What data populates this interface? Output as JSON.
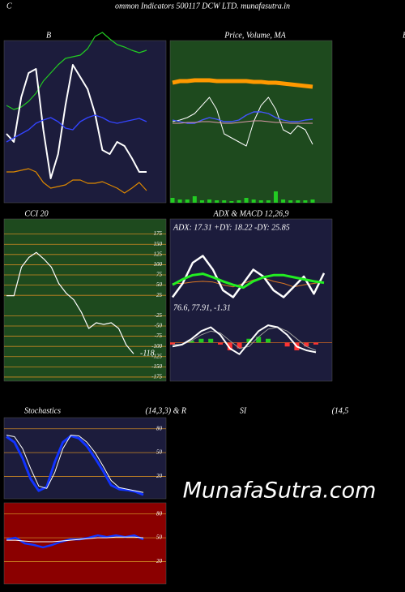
{
  "header": {
    "first": "C",
    "title": "ommon  Indicators 500117 DCW LTD. munafasutra.in",
    "clipped": "B"
  },
  "watermark": "MunafaSutra.com",
  "chart_data": [
    {
      "type": "line",
      "title": "B",
      "background": "#1c1c3c",
      "ylim": [
        0,
        100
      ],
      "series": [
        {
          "color": "#22cc22",
          "values": [
            60,
            57.5,
            59,
            62.5,
            67.5,
            75,
            80,
            85,
            89,
            90,
            91,
            95,
            102.5,
            105,
            101,
            97.5,
            96,
            94,
            92.5,
            94
          ]
        },
        {
          "color": "#ffffff",
          "values": [
            42.5,
            37.5,
            65,
            80,
            82.5,
            45,
            15,
            30,
            60,
            85,
            77.5,
            70,
            55,
            32.5,
            30,
            37.5,
            35,
            27.5,
            19,
            19
          ]
        },
        {
          "color": "#3344ff",
          "values": [
            37.5,
            40,
            42.5,
            45,
            49,
            51,
            52.5,
            50,
            46,
            45,
            50,
            52.5,
            54,
            52.5,
            50,
            49,
            50,
            51,
            52,
            50
          ]
        },
        {
          "color": "#dd8800",
          "values": [
            19,
            19,
            20,
            21,
            19,
            12.5,
            9,
            10,
            11,
            14,
            14,
            12,
            12,
            13,
            11,
            9,
            6,
            9,
            12.5,
            7.5
          ]
        }
      ]
    },
    {
      "type": "line",
      "title": "Price, Volume, MA",
      "background": "#1e4a1e",
      "ylim": [
        0,
        100
      ],
      "series": [
        {
          "color": "#ff9900",
          "values": [
            74,
            75,
            75,
            75.5,
            75.5,
            75.5,
            75,
            75,
            75,
            75,
            75,
            74.5,
            74.5,
            74,
            74,
            73.5,
            73,
            72.5,
            72,
            71.5
          ]
        },
        {
          "color": "#ffffff",
          "values": [
            50,
            51,
            52.5,
            55,
            60,
            65,
            57.5,
            42.5,
            40,
            37.5,
            35,
            50,
            60,
            65,
            57.5,
            45,
            42.5,
            47.5,
            45,
            36
          ]
        },
        {
          "color": "#4455ff",
          "values": [
            51,
            50,
            49,
            49,
            51,
            52.5,
            51.5,
            50,
            50,
            51,
            54,
            56,
            56,
            55,
            52.5,
            51,
            50,
            50,
            51,
            51.5
          ]
        },
        {
          "color": "#dd99aa",
          "values": [
            49,
            49,
            49.5,
            49.5,
            50,
            50,
            49.5,
            49,
            49,
            49.5,
            50,
            50.5,
            50.5,
            50,
            49.5,
            49.5,
            49,
            49,
            49,
            49
          ]
        }
      ],
      "volume": {
        "color": "#22cc22",
        "values": [
          3,
          2,
          2,
          4,
          1.5,
          2,
          1.5,
          1.5,
          1,
          1.5,
          3,
          2,
          1.5,
          1.5,
          7,
          2,
          1.5,
          1.5,
          1.5,
          2
        ]
      }
    },
    {
      "type": "line",
      "title": "CCI 20",
      "background": "#1e4a1e",
      "ylim": [
        -185,
        212
      ],
      "grid_color": "#cc8822",
      "yticks": [
        175,
        150,
        125,
        100,
        75,
        50,
        25,
        -25,
        -50,
        -75,
        -100,
        -125,
        -150,
        -175
      ],
      "series": [
        {
          "color": "#ffffff",
          "values": [
            24,
            24,
            94,
            118,
            130,
            114,
            94,
            54,
            30,
            14,
            -16,
            -56,
            -42,
            -46,
            -42,
            -56,
            -96,
            -118
          ]
        }
      ]
    },
    {
      "type": "line",
      "title": "ADX  & MACD 12,26,9",
      "background": "#1c1c3c",
      "ylim": [
        0,
        100
      ],
      "annotation": "ADX: 17.31  +DY: 18.22  -DY: 25.85",
      "series": [
        {
          "color": "#dd7722",
          "values": [
            30,
            30,
            32,
            33,
            32,
            28,
            25,
            30,
            35,
            38,
            33,
            30,
            25,
            28,
            30,
            32
          ]
        },
        {
          "color": "#ffffff",
          "values": [
            10,
            30,
            60,
            70,
            50,
            20,
            10,
            30,
            50,
            40,
            20,
            10,
            25,
            40,
            15,
            45
          ]
        },
        {
          "color": "#22ee22",
          "values": [
            28,
            36,
            42,
            44,
            39,
            33,
            28,
            24,
            33,
            39,
            42,
            42,
            39,
            36,
            33,
            31
          ]
        }
      ]
    },
    {
      "type": "line",
      "ylim": [
        -20,
        20
      ],
      "annotation": "76.6,  77.91,  -1.31",
      "histogram": {
        "colors": [
          "#22cc22",
          "#ff3333"
        ],
        "values": [
          -1,
          0,
          1,
          2,
          2,
          -1,
          -4,
          -3,
          2,
          3,
          2,
          0,
          -2,
          -4,
          -2,
          -1
        ]
      },
      "series": [
        {
          "color": "#999999",
          "values": [
            -1,
            -1,
            1,
            4,
            6,
            5,
            1,
            -3,
            -2,
            3,
            7,
            8,
            6,
            2,
            -2,
            -4
          ]
        },
        {
          "color": "#ffffff",
          "values": [
            -2,
            -1,
            2,
            6,
            8,
            4,
            -3,
            -6,
            0,
            6,
            9,
            8,
            4,
            -2,
            -4,
            -5
          ]
        }
      ]
    },
    {
      "type": "line",
      "title": "Stochastics",
      "subtitle": "(14,3,3) & R",
      "background": "#1c1c3c",
      "ylim": [
        -8,
        94
      ],
      "grid_color": "#cc8822",
      "yticks": [
        80,
        50,
        20
      ],
      "series": [
        {
          "color": "#1133ff",
          "values": [
            70,
            63,
            43,
            17,
            2,
            7,
            38,
            63,
            71,
            68,
            58,
            43,
            27,
            9,
            4,
            3,
            1,
            -3
          ]
        },
        {
          "color": "#ffffff",
          "values": [
            72,
            70,
            55,
            30,
            8,
            5,
            25,
            55,
            72,
            71,
            63,
            50,
            33,
            15,
            6,
            4,
            2,
            0
          ]
        }
      ]
    },
    {
      "type": "line",
      "title": "SI",
      "subtitle": "(14,5",
      "background": "#8b0000",
      "ylim": [
        -8,
        94
      ],
      "grid_color": "#cc8822",
      "yticks": [
        80,
        50,
        20
      ],
      "series": [
        {
          "color": "#1133ff",
          "values": [
            48,
            50,
            43,
            41,
            38,
            41,
            45,
            48,
            48,
            50,
            53,
            51,
            53,
            51,
            53,
            48
          ]
        },
        {
          "color": "#ffffff",
          "values": [
            47,
            47,
            46,
            45,
            45,
            45,
            46,
            47,
            48,
            49,
            50,
            50,
            51,
            51,
            51,
            50
          ]
        }
      ]
    }
  ]
}
